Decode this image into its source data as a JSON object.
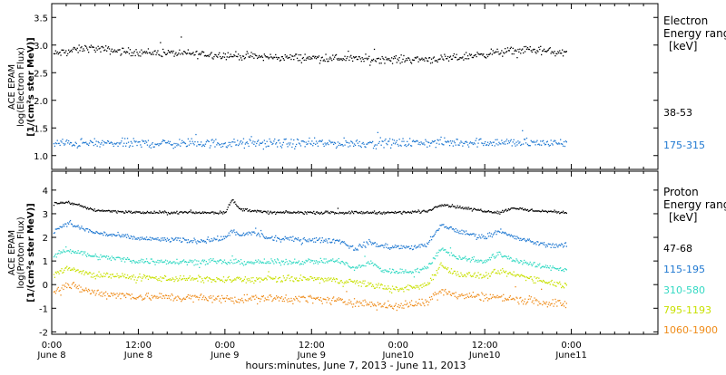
{
  "chart_data": {
    "type": "scatter",
    "time_axis": {
      "range_hours": [
        0,
        84
      ],
      "major_ticks": [
        {
          "hour": 0,
          "time": "0:00",
          "date": "June 8"
        },
        {
          "hour": 12,
          "time": "12:00",
          "date": "June 8"
        },
        {
          "hour": 24,
          "time": "0:00",
          "date": "June 9"
        },
        {
          "hour": 36,
          "time": "12:00",
          "date": "June 9"
        },
        {
          "hour": 48,
          "time": "0:00",
          "date": "June10"
        },
        {
          "hour": 60,
          "time": "12:00",
          "date": "June10"
        },
        {
          "hour": 72,
          "time": "0:00",
          "date": "June11"
        }
      ],
      "minor_tick_step_hours": 2,
      "xlabel": "hours:minutes, June  7, 2013 - June 11, 2013",
      "data_end_hour": 71.4
    },
    "panels": [
      {
        "id": "electron",
        "ylabel": [
          "ACE EPAM",
          "log(Electron Flux)",
          "[1/(cm²s ster MeV)]"
        ],
        "ylim": [
          0.75,
          3.75
        ],
        "yticks": [
          "1.0",
          "1.5",
          "2.0",
          "2.5",
          "3.0",
          "3.5"
        ],
        "ytick_values": [
          1.0,
          1.5,
          2.0,
          2.5,
          3.0,
          3.5
        ],
        "legend_title": [
          "Electron",
          "Energy ranges",
          "[keV]"
        ],
        "series": [
          {
            "name": "38-53",
            "color": "#000000",
            "noise": 0.06,
            "profile": [
              [
                0,
                2.83
              ],
              [
                5,
                2.95
              ],
              [
                10,
                2.88
              ],
              [
                20,
                2.84
              ],
              [
                30,
                2.78
              ],
              [
                40,
                2.76
              ],
              [
                48,
                2.74
              ],
              [
                55,
                2.75
              ],
              [
                60,
                2.84
              ],
              [
                66,
                2.92
              ],
              [
                71.4,
                2.85
              ]
            ]
          },
          {
            "name": "175-315",
            "color": "#1f78d1",
            "noise": 0.07,
            "profile": [
              [
                0,
                1.22
              ],
              [
                20,
                1.22
              ],
              [
                40,
                1.22
              ],
              [
                60,
                1.24
              ],
              [
                71.4,
                1.22
              ]
            ]
          }
        ]
      },
      {
        "id": "proton",
        "ylabel": [
          "ACE EPAM",
          "log(Proton Flux)",
          "[1/(cm²s ster MeV)]"
        ],
        "ylim": [
          -2.1,
          4.8
        ],
        "yticks": [
          "-2",
          "-1",
          "0",
          "1",
          "2",
          "3",
          "4"
        ],
        "ytick_values": [
          -2,
          -1,
          0,
          1,
          2,
          3,
          4
        ],
        "legend_title": [
          "Proton",
          "Energy ranges",
          "[keV]"
        ],
        "series": [
          {
            "name": "47-68",
            "color": "#000000",
            "noise": 0.05,
            "profile": [
              [
                0,
                3.4
              ],
              [
                2,
                3.5
              ],
              [
                6,
                3.15
              ],
              [
                12,
                3.05
              ],
              [
                24,
                3.05
              ],
              [
                25,
                3.6
              ],
              [
                26,
                3.2
              ],
              [
                30,
                3.05
              ],
              [
                48,
                3.05
              ],
              [
                52,
                3.1
              ],
              [
                54,
                3.4
              ],
              [
                58,
                3.2
              ],
              [
                62,
                3.05
              ],
              [
                64,
                3.25
              ],
              [
                66,
                3.15
              ],
              [
                71.4,
                3.05
              ]
            ]
          },
          {
            "name": "115-195",
            "color": "#1f78d1",
            "noise": 0.09,
            "profile": [
              [
                0,
                2.2
              ],
              [
                2,
                2.6
              ],
              [
                6,
                2.2
              ],
              [
                12,
                1.95
              ],
              [
                20,
                1.85
              ],
              [
                24,
                1.95
              ],
              [
                25,
                2.3
              ],
              [
                26,
                2.05
              ],
              [
                28,
                2.2
              ],
              [
                30,
                1.95
              ],
              [
                40,
                1.85
              ],
              [
                42,
                1.5
              ],
              [
                44,
                1.8
              ],
              [
                46,
                1.6
              ],
              [
                48,
                1.6
              ],
              [
                50,
                1.55
              ],
              [
                52,
                1.7
              ],
              [
                54,
                2.5
              ],
              [
                57,
                2.2
              ],
              [
                60,
                2.0
              ],
              [
                62,
                2.3
              ],
              [
                64,
                2.0
              ],
              [
                68,
                1.7
              ],
              [
                71.4,
                1.65
              ]
            ]
          },
          {
            "name": "310-580",
            "color": "#33d9c3",
            "noise": 0.1,
            "profile": [
              [
                0,
                1.1
              ],
              [
                2,
                1.5
              ],
              [
                6,
                1.2
              ],
              [
                12,
                1.0
              ],
              [
                24,
                0.95
              ],
              [
                30,
                0.95
              ],
              [
                40,
                1.0
              ],
              [
                42,
                0.65
              ],
              [
                44,
                0.95
              ],
              [
                46,
                0.6
              ],
              [
                48,
                0.55
              ],
              [
                50,
                0.55
              ],
              [
                52,
                0.7
              ],
              [
                54,
                1.55
              ],
              [
                56,
                1.15
              ],
              [
                60,
                1.0
              ],
              [
                62,
                1.3
              ],
              [
                64,
                1.05
              ],
              [
                68,
                0.75
              ],
              [
                71.4,
                0.65
              ]
            ]
          },
          {
            "name": "795-1193",
            "color": "#c8e000",
            "noise": 0.12,
            "profile": [
              [
                0,
                0.35
              ],
              [
                2,
                0.7
              ],
              [
                6,
                0.4
              ],
              [
                12,
                0.3
              ],
              [
                24,
                0.2
              ],
              [
                36,
                0.25
              ],
              [
                42,
                0.1
              ],
              [
                46,
                -0.1
              ],
              [
                48,
                -0.25
              ],
              [
                52,
                0.0
              ],
              [
                54,
                0.85
              ],
              [
                56,
                0.45
              ],
              [
                60,
                0.35
              ],
              [
                62,
                0.55
              ],
              [
                66,
                0.3
              ],
              [
                71.4,
                -0.05
              ]
            ]
          },
          {
            "name": "1060-1900",
            "color": "#ef8c1a",
            "noise": 0.15,
            "profile": [
              [
                0,
                -0.3
              ],
              [
                2,
                0.0
              ],
              [
                6,
                -0.35
              ],
              [
                12,
                -0.5
              ],
              [
                24,
                -0.6
              ],
              [
                36,
                -0.6
              ],
              [
                44,
                -0.8
              ],
              [
                48,
                -0.95
              ],
              [
                52,
                -0.7
              ],
              [
                54,
                -0.2
              ],
              [
                56,
                -0.45
              ],
              [
                60,
                -0.5
              ],
              [
                64,
                -0.6
              ],
              [
                71.4,
                -0.85
              ]
            ]
          }
        ]
      }
    ]
  }
}
